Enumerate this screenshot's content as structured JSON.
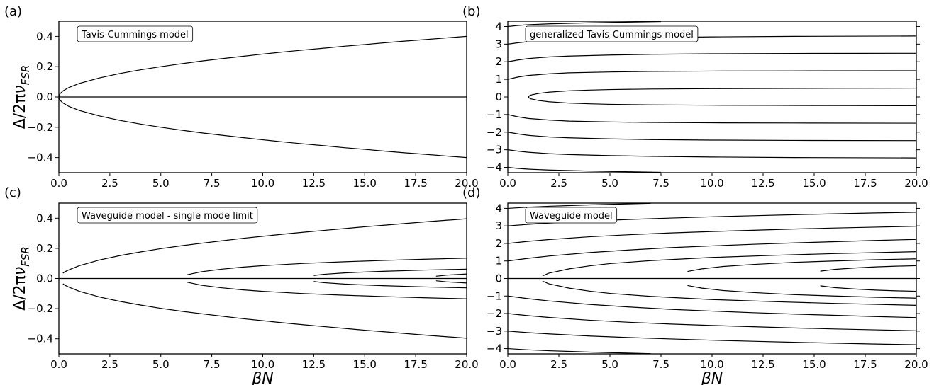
{
  "chart_data": [
    {
      "panel": "(a)",
      "type": "line",
      "annotation": "Tavis-Cummings model",
      "xlabel": "",
      "ylabel": "Δ/2πν_FSR",
      "xlim": [
        0,
        20
      ],
      "ylim": [
        -0.5,
        0.5
      ],
      "xticks": [
        "0.0",
        "2.5",
        "5.0",
        "7.5",
        "10.0",
        "12.5",
        "15.0",
        "17.5",
        "20.0"
      ],
      "yticks": [
        "0.4",
        "0.2",
        "0.0",
        "−0.2",
        "−0.4"
      ],
      "grid": false,
      "series": [
        {
          "x": [
            0,
            0.05,
            0.2,
            0.5,
            1,
            2,
            3,
            4,
            5,
            6,
            7,
            8,
            9,
            10,
            11,
            12,
            13,
            14,
            15,
            16,
            17,
            18,
            19,
            20
          ],
          "y": [
            0,
            0.02,
            0.04,
            0.063,
            0.089,
            0.126,
            0.155,
            0.179,
            0.2,
            0.219,
            0.237,
            0.253,
            0.268,
            0.283,
            0.297,
            0.31,
            0.322,
            0.335,
            0.346,
            0.358,
            0.369,
            0.379,
            0.39,
            0.4
          ]
        },
        {
          "x": [
            0,
            0.05,
            0.2,
            0.5,
            1,
            2,
            3,
            4,
            5,
            6,
            7,
            8,
            9,
            10,
            11,
            12,
            13,
            14,
            15,
            16,
            17,
            18,
            19,
            20
          ],
          "y": [
            0,
            -0.02,
            -0.04,
            -0.063,
            -0.089,
            -0.126,
            -0.155,
            -0.179,
            -0.2,
            -0.219,
            -0.237,
            -0.253,
            -0.268,
            -0.283,
            -0.297,
            -0.31,
            -0.322,
            -0.335,
            -0.346,
            -0.358,
            -0.369,
            -0.379,
            -0.39,
            -0.4
          ]
        },
        {
          "x": [
            0,
            20
          ],
          "y": [
            0,
            0
          ]
        }
      ]
    },
    {
      "panel": "(b)",
      "type": "line",
      "annotation": "generalized Tavis-Cummings model",
      "xlabel": "",
      "ylabel": "",
      "xlim": [
        0,
        20
      ],
      "ylim": [
        -4.3,
        4.3
      ],
      "xticks": [
        "0.0",
        "2.5",
        "5.0",
        "7.5",
        "10.0",
        "12.5",
        "15.0",
        "17.5",
        "20.0"
      ],
      "yticks": [
        "4",
        "3",
        "2",
        "1",
        "0",
        "−1",
        "−2",
        "−3",
        "−4"
      ],
      "grid": false,
      "series": [
        {
          "x": [
            1,
            1.1,
            1.5,
            2,
            3,
            4,
            5,
            7,
            10,
            13,
            16,
            20
          ],
          "y": [
            0,
            0.1,
            0.2,
            0.27,
            0.35,
            0.39,
            0.42,
            0.45,
            0.47,
            0.48,
            0.49,
            0.5
          ]
        },
        {
          "x": [
            1,
            1.1,
            1.5,
            2,
            3,
            4,
            5,
            7,
            10,
            13,
            16,
            20
          ],
          "y": [
            0,
            -0.1,
            -0.2,
            -0.27,
            -0.35,
            -0.39,
            -0.42,
            -0.45,
            -0.47,
            -0.48,
            -0.49,
            -0.5
          ]
        },
        {
          "x": [
            0,
            0.5,
            1,
            2,
            3,
            5,
            7,
            10,
            14,
            20
          ],
          "y": [
            1,
            1.13,
            1.22,
            1.31,
            1.37,
            1.42,
            1.45,
            1.47,
            1.48,
            1.49
          ]
        },
        {
          "x": [
            0,
            0.5,
            1,
            2,
            3,
            5,
            7,
            10,
            14,
            20
          ],
          "y": [
            -1,
            -1.13,
            -1.22,
            -1.31,
            -1.37,
            -1.42,
            -1.45,
            -1.47,
            -1.48,
            -1.49
          ]
        },
        {
          "x": [
            0,
            0.5,
            1,
            2,
            3,
            5,
            7,
            10,
            14,
            20
          ],
          "y": [
            2,
            2.1,
            2.18,
            2.27,
            2.32,
            2.38,
            2.42,
            2.45,
            2.47,
            2.48
          ]
        },
        {
          "x": [
            0,
            0.5,
            1,
            2,
            3,
            5,
            7,
            10,
            14,
            20
          ],
          "y": [
            -2,
            -2.1,
            -2.18,
            -2.27,
            -2.32,
            -2.38,
            -2.42,
            -2.45,
            -2.47,
            -2.48
          ]
        },
        {
          "x": [
            0,
            0.5,
            1,
            2,
            3,
            5,
            7,
            10,
            14,
            20
          ],
          "y": [
            3,
            3.08,
            3.14,
            3.22,
            3.27,
            3.33,
            3.37,
            3.41,
            3.44,
            3.46
          ]
        },
        {
          "x": [
            0,
            0.5,
            1,
            2,
            3,
            5,
            7,
            10,
            14,
            20
          ],
          "y": [
            -3,
            -3.08,
            -3.14,
            -3.22,
            -3.27,
            -3.33,
            -3.37,
            -3.41,
            -3.44,
            -3.46
          ]
        },
        {
          "x": [
            0,
            0.5,
            1,
            2,
            3,
            4,
            5,
            6,
            7,
            7.5
          ],
          "y": [
            4,
            4.06,
            4.1,
            4.15,
            4.18,
            4.21,
            4.23,
            4.25,
            4.27,
            4.28
          ]
        },
        {
          "x": [
            0,
            0.5,
            1,
            2,
            3,
            4,
            5,
            6,
            7,
            7.5
          ],
          "y": [
            -4,
            -4.06,
            -4.1,
            -4.15,
            -4.18,
            -4.21,
            -4.23,
            -4.25,
            -4.27,
            -4.28
          ]
        }
      ]
    },
    {
      "panel": "(c)",
      "type": "line",
      "annotation": "Waveguide model - single mode limit",
      "xlabel": "βN",
      "ylabel": "Δ/2πν_FSR",
      "xlim": [
        0,
        20
      ],
      "ylim": [
        -0.5,
        0.5
      ],
      "xticks": [
        "0.0",
        "2.5",
        "5.0",
        "7.5",
        "10.0",
        "12.5",
        "15.0",
        "17.5",
        "20.0"
      ],
      "yticks": [
        "0.4",
        "0.2",
        "0.0",
        "−0.2",
        "−0.4"
      ],
      "grid": false,
      "series": [
        {
          "x": [
            0.2,
            0.3,
            0.5,
            1,
            2,
            3,
            4,
            5,
            6,
            7,
            8,
            9,
            10,
            11,
            12,
            13,
            14,
            15,
            16,
            17,
            18,
            19,
            20
          ],
          "y": [
            0.035,
            0.045,
            0.058,
            0.085,
            0.123,
            0.152,
            0.176,
            0.198,
            0.217,
            0.234,
            0.25,
            0.266,
            0.28,
            0.294,
            0.307,
            0.319,
            0.331,
            0.343,
            0.354,
            0.365,
            0.376,
            0.386,
            0.396
          ]
        },
        {
          "x": [
            0.2,
            0.3,
            0.5,
            1,
            2,
            3,
            4,
            5,
            6,
            7,
            8,
            9,
            10,
            11,
            12,
            13,
            14,
            15,
            16,
            17,
            18,
            19,
            20
          ],
          "y": [
            -0.035,
            -0.045,
            -0.058,
            -0.085,
            -0.123,
            -0.152,
            -0.176,
            -0.198,
            -0.217,
            -0.234,
            -0.25,
            -0.266,
            -0.28,
            -0.294,
            -0.307,
            -0.319,
            -0.331,
            -0.343,
            -0.354,
            -0.365,
            -0.376,
            -0.386,
            -0.396
          ]
        },
        {
          "x": [
            6.3,
            7,
            8,
            9,
            10,
            12,
            14,
            16,
            18,
            20
          ],
          "y": [
            0.025,
            0.045,
            0.062,
            0.075,
            0.085,
            0.1,
            0.111,
            0.12,
            0.128,
            0.135
          ]
        },
        {
          "x": [
            6.3,
            7,
            8,
            9,
            10,
            12,
            14,
            16,
            18,
            20
          ],
          "y": [
            -0.025,
            -0.045,
            -0.062,
            -0.075,
            -0.085,
            -0.1,
            -0.111,
            -0.12,
            -0.128,
            -0.135
          ]
        },
        {
          "x": [
            12.5,
            13,
            14,
            15,
            16,
            17,
            18,
            19,
            20
          ],
          "y": [
            0.02,
            0.028,
            0.037,
            0.043,
            0.048,
            0.052,
            0.056,
            0.059,
            0.062
          ]
        },
        {
          "x": [
            12.5,
            13,
            14,
            15,
            16,
            17,
            18,
            19,
            20
          ],
          "y": [
            -0.02,
            -0.028,
            -0.037,
            -0.043,
            -0.048,
            -0.052,
            -0.056,
            -0.059,
            -0.062
          ]
        },
        {
          "x": [
            18.5,
            19,
            19.5,
            20
          ],
          "y": [
            0.015,
            0.022,
            0.026,
            0.03
          ]
        },
        {
          "x": [
            18.5,
            19,
            19.5,
            20
          ],
          "y": [
            -0.015,
            -0.022,
            -0.026,
            -0.03
          ]
        },
        {
          "x": [
            0,
            20
          ],
          "y": [
            0,
            0
          ]
        }
      ]
    },
    {
      "panel": "(d)",
      "type": "line",
      "annotation": "Waveguide model",
      "xlabel": "βN",
      "ylabel": "",
      "xlim": [
        0,
        20
      ],
      "ylim": [
        -4.3,
        4.3
      ],
      "xticks": [
        "0.0",
        "2.5",
        "5.0",
        "7.5",
        "10.0",
        "12.5",
        "15.0",
        "17.5",
        "20.0"
      ],
      "yticks": [
        "4",
        "3",
        "2",
        "1",
        "0",
        "−1",
        "−2",
        "−3",
        "−4"
      ],
      "grid": false,
      "series": [
        {
          "x": [
            1.7,
            2,
            3,
            4,
            5,
            7,
            10,
            13,
            16,
            20
          ],
          "y": [
            0.15,
            0.3,
            0.55,
            0.72,
            0.85,
            1.02,
            1.2,
            1.32,
            1.42,
            1.53
          ]
        },
        {
          "x": [
            1.7,
            2,
            3,
            4,
            5,
            7,
            10,
            13,
            16,
            20
          ],
          "y": [
            -0.15,
            -0.3,
            -0.55,
            -0.72,
            -0.85,
            -1.02,
            -1.2,
            -1.32,
            -1.42,
            -1.53
          ]
        },
        {
          "x": [
            8.8,
            9.5,
            10.5,
            12,
            14,
            16,
            18,
            20
          ],
          "y": [
            0.4,
            0.55,
            0.68,
            0.8,
            0.92,
            1.0,
            1.07,
            1.12
          ]
        },
        {
          "x": [
            8.8,
            9.5,
            10.5,
            12,
            14,
            16,
            18,
            20
          ],
          "y": [
            -0.4,
            -0.55,
            -0.68,
            -0.8,
            -0.92,
            -1.0,
            -1.07,
            -1.12
          ]
        },
        {
          "x": [
            15.3,
            16,
            17,
            18,
            19,
            20
          ],
          "y": [
            0.42,
            0.52,
            0.6,
            0.66,
            0.7,
            0.73
          ]
        },
        {
          "x": [
            15.3,
            16,
            17,
            18,
            19,
            20
          ],
          "y": [
            -0.42,
            -0.52,
            -0.6,
            -0.66,
            -0.7,
            -0.73
          ]
        },
        {
          "x": [
            0,
            1,
            2,
            4,
            6,
            8,
            10,
            12,
            14,
            16,
            18,
            20
          ],
          "y": [
            1,
            1.15,
            1.28,
            1.48,
            1.63,
            1.76,
            1.86,
            1.95,
            2.03,
            2.1,
            2.17,
            2.23
          ]
        },
        {
          "x": [
            0,
            1,
            2,
            4,
            6,
            8,
            10,
            12,
            14,
            16,
            18,
            20
          ],
          "y": [
            -1,
            -1.15,
            -1.28,
            -1.48,
            -1.63,
            -1.76,
            -1.86,
            -1.95,
            -2.03,
            -2.1,
            -2.17,
            -2.23
          ]
        },
        {
          "x": [
            0,
            1,
            2,
            4,
            6,
            8,
            10,
            12,
            14,
            16,
            18,
            20
          ],
          "y": [
            2,
            2.12,
            2.22,
            2.38,
            2.5,
            2.6,
            2.68,
            2.75,
            2.82,
            2.88,
            2.93,
            2.98
          ]
        },
        {
          "x": [
            0,
            1,
            2,
            4,
            6,
            8,
            10,
            12,
            14,
            16,
            18,
            20
          ],
          "y": [
            -2,
            -2.12,
            -2.22,
            -2.38,
            -2.5,
            -2.6,
            -2.68,
            -2.75,
            -2.82,
            -2.88,
            -2.93,
            -2.98
          ]
        },
        {
          "x": [
            0,
            1,
            2,
            4,
            6,
            8,
            10,
            12,
            14,
            16,
            18,
            20
          ],
          "y": [
            3,
            3.09,
            3.16,
            3.28,
            3.37,
            3.45,
            3.52,
            3.58,
            3.64,
            3.69,
            3.74,
            3.78
          ]
        },
        {
          "x": [
            0,
            1,
            2,
            4,
            6,
            8,
            10,
            12,
            14,
            16,
            18,
            20
          ],
          "y": [
            -3,
            -3.09,
            -3.16,
            -3.28,
            -3.37,
            -3.45,
            -3.52,
            -3.58,
            -3.64,
            -3.69,
            -3.74,
            -3.78
          ]
        },
        {
          "x": [
            0,
            1,
            2,
            3,
            4,
            5,
            6,
            7
          ],
          "y": [
            4,
            4.07,
            4.12,
            4.16,
            4.2,
            4.23,
            4.26,
            4.29
          ]
        },
        {
          "x": [
            0,
            1,
            2,
            3,
            4,
            5,
            6,
            7
          ],
          "y": [
            -4,
            -4.07,
            -4.12,
            -4.16,
            -4.2,
            -4.23,
            -4.26,
            -4.29
          ]
        },
        {
          "x": [
            0,
            20
          ],
          "y": [
            0,
            0
          ]
        }
      ]
    }
  ]
}
